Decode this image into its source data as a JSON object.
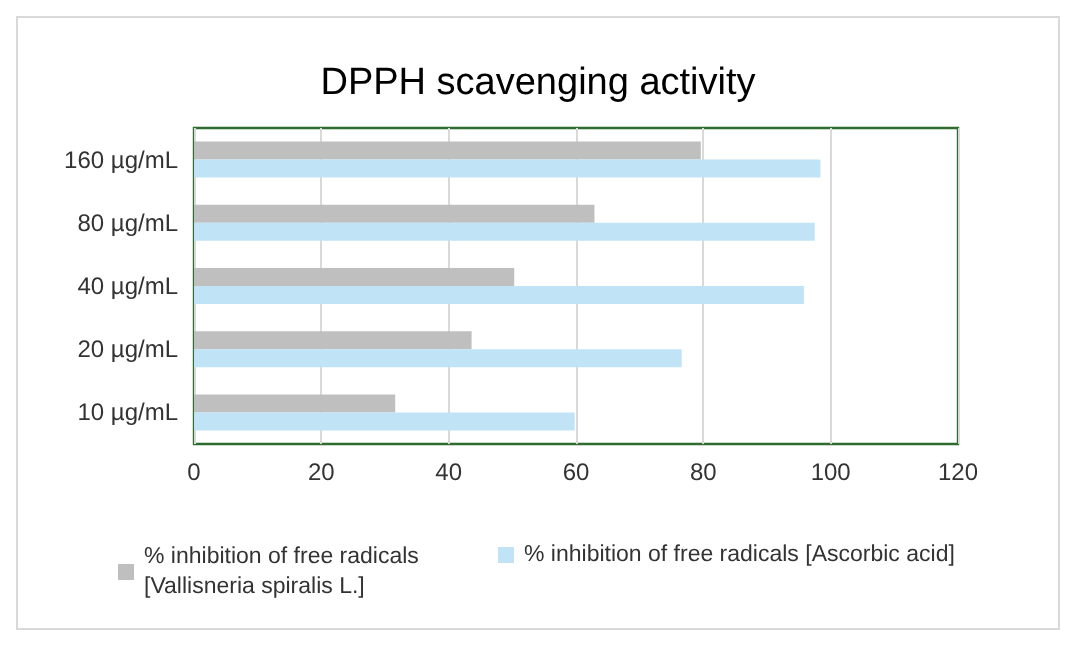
{
  "chart_data": {
    "type": "bar",
    "orientation": "horizontal",
    "title": "DPPH scavenging activity",
    "categories": [
      "160 µg/mL",
      "80 µg/mL",
      "40 µg/mL",
      "20 µg/mL",
      "10 µg/mL"
    ],
    "series": [
      {
        "name": "% inhibition of free radicals [Vallisneria spiralis L.]",
        "color": "#bfbfbf",
        "values": [
          79.6,
          62.9,
          50.3,
          43.6,
          31.6
        ]
      },
      {
        "name": "% inhibition of free radicals [Ascorbic acid]",
        "color": "#c0e4f5",
        "values": [
          98.4,
          97.5,
          95.8,
          76.6,
          59.8
        ]
      }
    ],
    "xlim": [
      0,
      120
    ],
    "xticks": [
      0,
      20,
      40,
      60,
      80,
      100,
      120
    ],
    "grid": "x",
    "legend": "bottom"
  }
}
